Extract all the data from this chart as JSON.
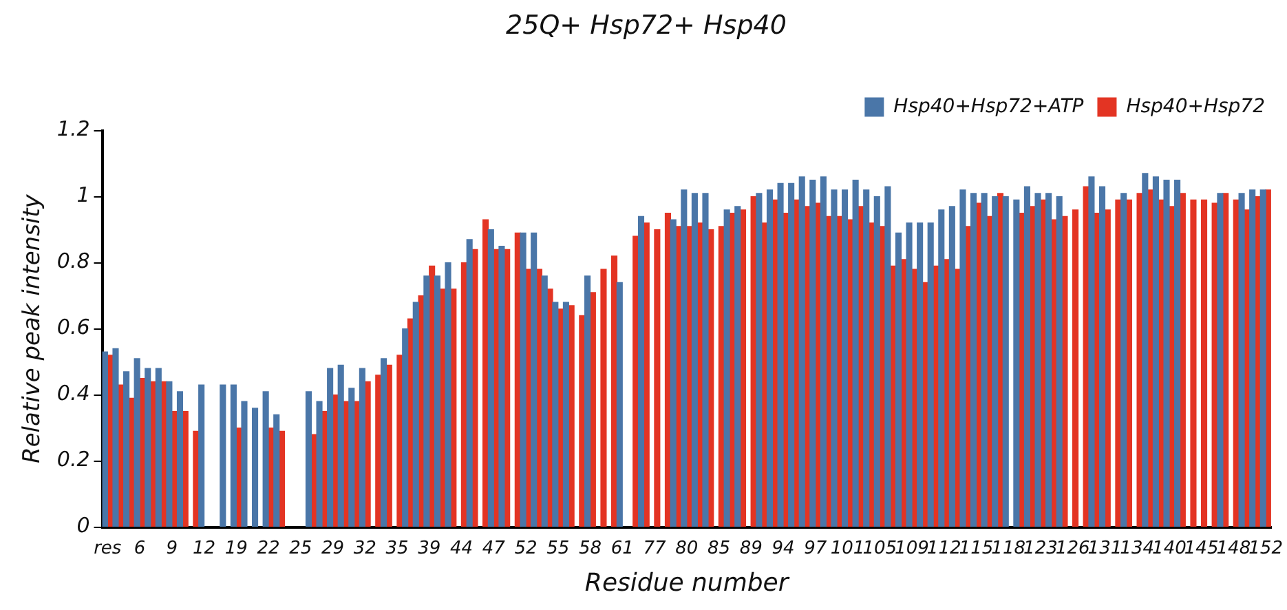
{
  "chart_data": {
    "type": "bar",
    "title": "25Q+ Hsp72+ Hsp40",
    "xlabel": "Residue number",
    "ylabel": "Relative peak intensity",
    "categories": [
      "res",
      null,
      null,
      "6",
      null,
      null,
      "9",
      null,
      null,
      "12",
      null,
      null,
      "19",
      null,
      null,
      "22",
      null,
      null,
      "25",
      null,
      null,
      "29",
      null,
      null,
      "32",
      null,
      null,
      "35",
      null,
      null,
      "39",
      null,
      null,
      "44",
      null,
      null,
      "47",
      null,
      null,
      "52",
      null,
      null,
      "55",
      null,
      null,
      "58",
      null,
      null,
      "61",
      null,
      null,
      "77",
      null,
      null,
      "80",
      null,
      null,
      "85",
      null,
      null,
      "89",
      null,
      null,
      "94",
      null,
      null,
      "97",
      null,
      null,
      "101",
      null,
      null,
      "105",
      null,
      null,
      "109",
      null,
      null,
      "112",
      null,
      null,
      "115",
      null,
      null,
      "118",
      null,
      null,
      "123",
      null,
      null,
      "126",
      null,
      null,
      "131",
      null,
      null,
      "134",
      null,
      null,
      "140",
      null,
      null,
      "145",
      null,
      null,
      "148",
      null,
      null,
      "152"
    ],
    "series": [
      {
        "name": "Hsp40+Hsp72+ATP",
        "color": "#4a76a8",
        "values": [
          0.53,
          0.54,
          0.47,
          0.51,
          0.48,
          0.48,
          0.44,
          0.41,
          null,
          0.43,
          null,
          0.43,
          0.43,
          0.38,
          0.36,
          0.41,
          0.34,
          null,
          null,
          0.41,
          0.38,
          0.48,
          0.49,
          0.42,
          0.48,
          null,
          0.51,
          null,
          0.6,
          0.68,
          0.76,
          0.76,
          0.8,
          null,
          0.87,
          null,
          0.9,
          0.85,
          null,
          0.89,
          0.89,
          0.76,
          0.68,
          0.68,
          null,
          0.76,
          null,
          null,
          0.74,
          null,
          0.94,
          null,
          null,
          0.93,
          1.02,
          1.01,
          1.01,
          null,
          0.96,
          0.97,
          null,
          1.01,
          1.02,
          1.04,
          1.04,
          1.06,
          1.05,
          1.06,
          1.02,
          1.02,
          1.05,
          1.02,
          1.0,
          1.03,
          0.89,
          0.92,
          0.92,
          0.92,
          0.96,
          0.97,
          1.02,
          1.01,
          1.01,
          1.0,
          1.0,
          0.99,
          1.03,
          1.01,
          1.01,
          1.0,
          null,
          null,
          1.06,
          1.03,
          null,
          1.01,
          null,
          1.07,
          1.06,
          1.05,
          1.05,
          null,
          null,
          null,
          1.01,
          null,
          1.01,
          1.02,
          1.02
        ]
      },
      {
        "name": "Hsp40+Hsp72",
        "color": "#e33423",
        "values": [
          0.52,
          0.43,
          0.39,
          0.45,
          0.44,
          0.44,
          0.35,
          0.35,
          0.29,
          null,
          null,
          null,
          0.3,
          null,
          null,
          0.3,
          0.29,
          null,
          null,
          0.28,
          0.35,
          0.4,
          0.38,
          0.38,
          0.44,
          0.46,
          0.49,
          0.52,
          0.63,
          0.7,
          0.79,
          0.72,
          0.72,
          0.8,
          0.84,
          0.93,
          0.84,
          0.84,
          0.89,
          0.78,
          0.78,
          0.72,
          0.66,
          0.67,
          0.64,
          0.71,
          0.78,
          0.82,
          null,
          0.88,
          0.92,
          0.9,
          0.95,
          0.91,
          0.91,
          0.92,
          0.9,
          0.91,
          0.95,
          0.96,
          1.0,
          0.92,
          0.99,
          0.95,
          0.99,
          0.97,
          0.98,
          0.94,
          0.94,
          0.93,
          0.97,
          0.92,
          0.91,
          0.79,
          0.81,
          0.78,
          0.74,
          0.79,
          0.81,
          0.78,
          0.91,
          0.98,
          0.94,
          1.01,
          null,
          0.95,
          0.97,
          0.99,
          0.93,
          0.94,
          0.96,
          1.03,
          0.95,
          0.96,
          0.99,
          0.99,
          1.01,
          1.02,
          0.99,
          0.97,
          1.01,
          0.99,
          0.99,
          0.98,
          1.01,
          0.99,
          0.96,
          1.0,
          1.02
        ]
      }
    ],
    "ylim": [
      0,
      1.2
    ],
    "yticks": [
      0,
      0.2,
      0.4,
      0.6,
      0.8,
      1,
      1.2
    ],
    "grid": false,
    "legend": "top right"
  }
}
